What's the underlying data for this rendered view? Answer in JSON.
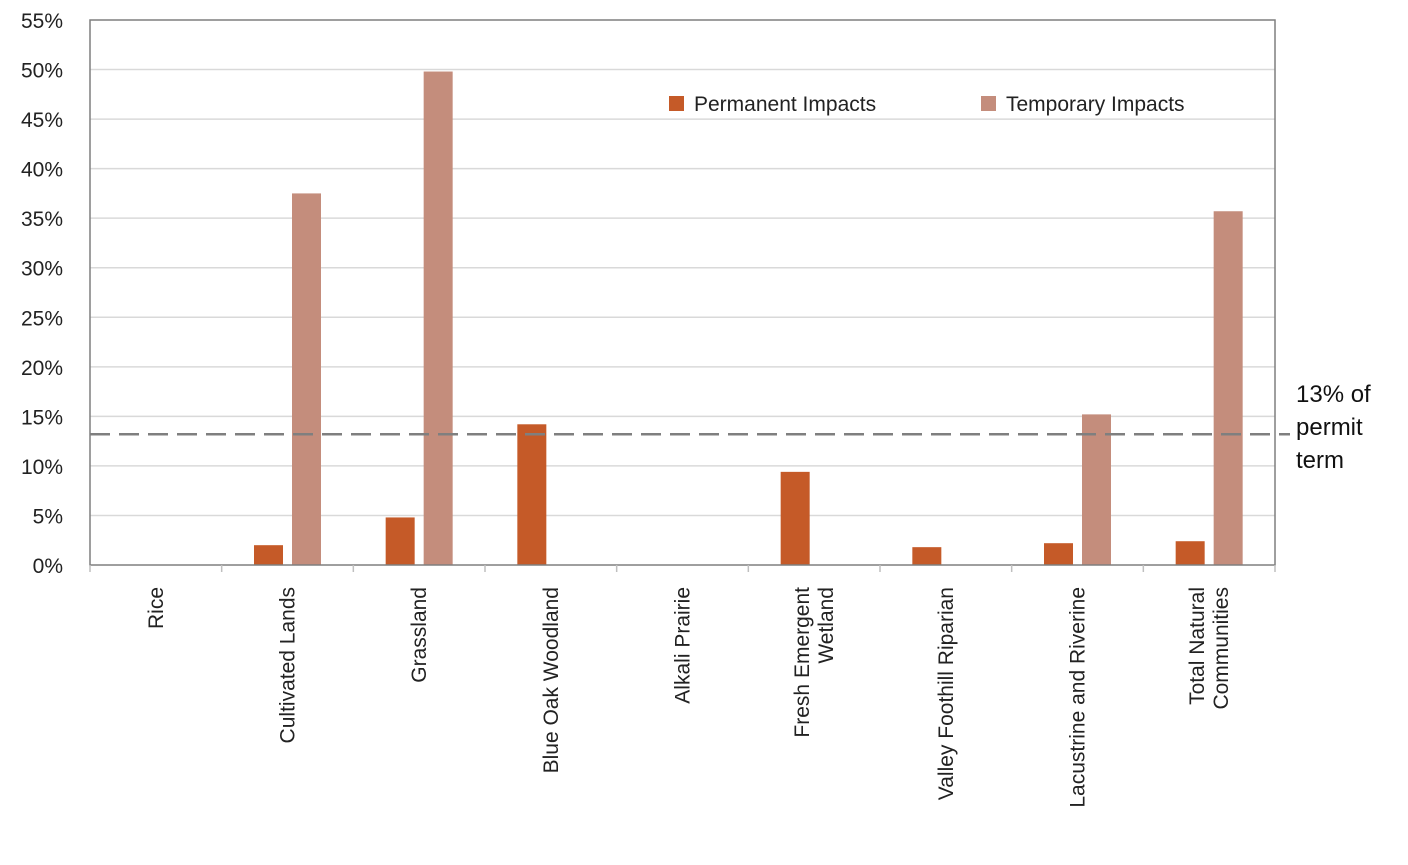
{
  "chart_data": {
    "type": "bar",
    "categories": [
      [
        "Rice"
      ],
      [
        "Cultivated Lands"
      ],
      [
        "Grassland"
      ],
      [
        "Blue Oak Woodland"
      ],
      [
        "Alkali Prairie"
      ],
      [
        "Fresh Emergent",
        "Wetland"
      ],
      [
        "Valley Foothill Riparian"
      ],
      [
        "Lacustrine and Riverine"
      ],
      [
        "Total Natural",
        "Communities"
      ]
    ],
    "series": [
      {
        "name": "Permanent Impacts",
        "color": "#c55a28",
        "values": [
          0,
          2.0,
          4.8,
          14.2,
          0,
          9.4,
          1.8,
          2.2,
          2.4
        ]
      },
      {
        "name": "Temporary Impacts",
        "color": "#c48d7c",
        "values": [
          0,
          37.5,
          49.8,
          0,
          0,
          0,
          0,
          15.2,
          35.7
        ]
      }
    ],
    "yticks": [
      "0%",
      "5%",
      "10%",
      "15%",
      "20%",
      "25%",
      "30%",
      "35%",
      "40%",
      "45%",
      "50%",
      "55%"
    ],
    "ylim": [
      0,
      55
    ],
    "ystep": 5,
    "grid": true,
    "legend_position": "top-right",
    "reference_line": {
      "value": 13.2,
      "style": "dashed",
      "color": "#7f7f7f",
      "label_lines": [
        "13% of",
        "permit",
        "term"
      ]
    }
  }
}
